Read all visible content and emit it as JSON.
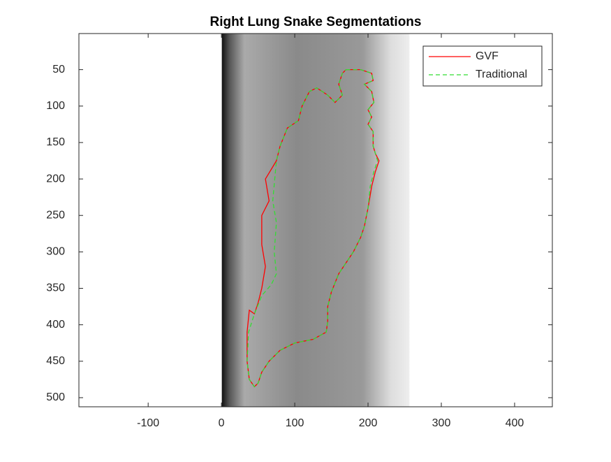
{
  "chart_data": {
    "type": "line",
    "title": "Right Lung Snake Segmentations",
    "xlim": [
      -194.5,
      451.5
    ],
    "ylim": [
      0.5,
      512.5
    ],
    "y_direction": "reverse",
    "xticks": [
      -100,
      0,
      100,
      200,
      300,
      400
    ],
    "yticks": [
      50,
      100,
      150,
      200,
      250,
      300,
      350,
      400,
      450,
      500
    ],
    "legend": "northeast",
    "series": [
      {
        "name": "GVF",
        "color": "#ff0000",
        "style": "solid",
        "x": [
          170,
          190,
          205,
          207,
          195,
          205,
          208,
          200,
          205,
          200,
          207,
          207,
          210,
          215,
          210,
          205,
          200,
          195,
          190,
          180,
          170,
          160,
          150,
          145,
          145,
          143,
          125,
          100,
          80,
          65,
          55,
          50,
          45,
          38,
          35,
          35,
          38,
          45,
          50,
          55,
          60,
          55,
          55,
          65,
          60,
          75,
          80,
          90,
          105,
          110,
          120,
          130,
          145,
          155,
          165,
          160,
          165,
          170
        ],
        "values": [
          50,
          50,
          55,
          65,
          70,
          80,
          95,
          105,
          115,
          125,
          135,
          155,
          165,
          175,
          190,
          210,
          240,
          265,
          280,
          300,
          315,
          330,
          355,
          375,
          395,
          410,
          420,
          425,
          435,
          450,
          465,
          480,
          485,
          475,
          450,
          410,
          380,
          385,
          370,
          350,
          320,
          290,
          250,
          230,
          200,
          175,
          155,
          130,
          120,
          100,
          80,
          75,
          85,
          95,
          85,
          70,
          55,
          50
        ]
      },
      {
        "name": "Traditional",
        "color": "#33dd33",
        "style": "dashed",
        "x": [
          170,
          190,
          205,
          207,
          195,
          205,
          208,
          200,
          205,
          200,
          207,
          207,
          210,
          213,
          208,
          203,
          200,
          195,
          190,
          180,
          170,
          160,
          150,
          145,
          145,
          143,
          125,
          100,
          80,
          65,
          55,
          50,
          45,
          38,
          35,
          37,
          45,
          55,
          68,
          75,
          72,
          75,
          70,
          75,
          80,
          90,
          105,
          110,
          120,
          130,
          145,
          155,
          165,
          160,
          165,
          170
        ],
        "values": [
          50,
          50,
          55,
          65,
          70,
          80,
          95,
          105,
          115,
          125,
          135,
          155,
          165,
          175,
          190,
          210,
          240,
          265,
          280,
          300,
          315,
          330,
          355,
          375,
          395,
          410,
          420,
          425,
          435,
          450,
          465,
          480,
          485,
          475,
          450,
          410,
          385,
          360,
          345,
          330,
          300,
          260,
          230,
          175,
          155,
          130,
          120,
          100,
          80,
          75,
          85,
          95,
          85,
          70,
          55,
          50
        ]
      }
    ]
  }
}
